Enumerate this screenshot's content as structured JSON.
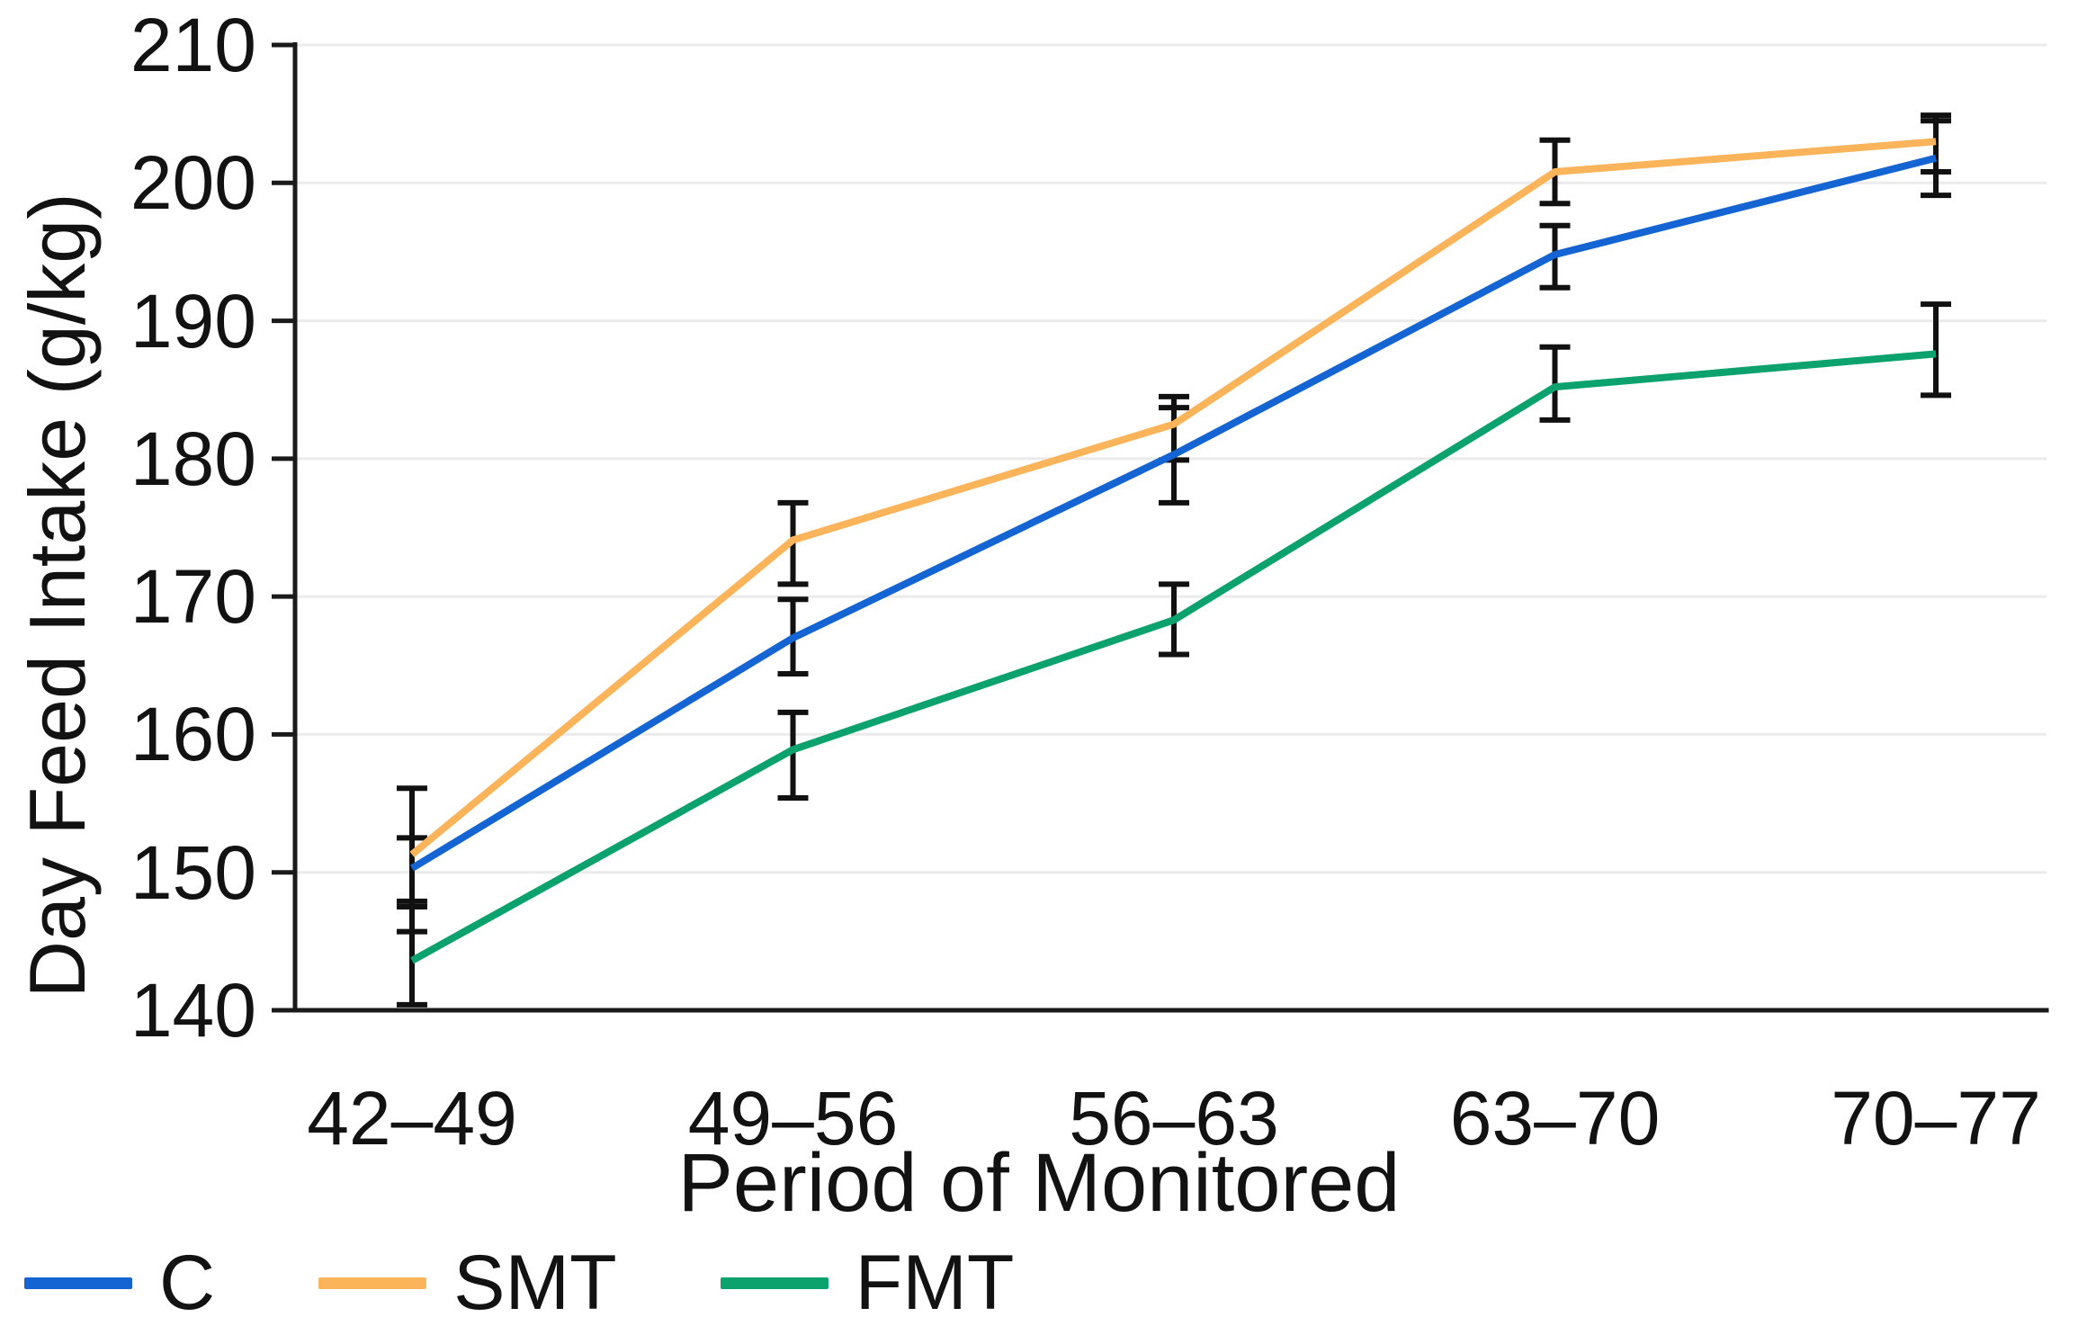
{
  "chart_data": {
    "type": "line",
    "title": "",
    "xlabel": "Period of Monitored",
    "ylabel": "Day Feed Intake (g/kg)",
    "categories": [
      "42–49",
      "49–56",
      "56–63",
      "63–70",
      "70–77"
    ],
    "ylim": [
      140,
      210
    ],
    "y_ticks": [
      140,
      150,
      160,
      170,
      180,
      190,
      200,
      210
    ],
    "grid": "horizontal-only",
    "error_bars": true,
    "legend_position": "bottom-left",
    "series": [
      {
        "name": "C",
        "color": "#1464d3",
        "values": [
          150.3,
          167.0,
          180.3,
          194.8,
          201.8
        ],
        "err_hi": [
          152.5,
          169.8,
          183.7,
          196.9,
          204.5
        ],
        "err_lo": [
          147.9,
          164.4,
          176.8,
          192.4,
          199.1
        ]
      },
      {
        "name": "SMT",
        "color": "#fcb45a",
        "values": [
          151.3,
          174.1,
          182.5,
          200.8,
          203.0
        ],
        "err_hi": [
          156.1,
          176.8,
          184.5,
          203.1,
          204.9
        ],
        "err_lo": [
          145.7,
          170.9,
          179.9,
          198.5,
          200.8
        ]
      },
      {
        "name": "FMT",
        "color": "#0ca26e",
        "values": [
          143.6,
          158.9,
          168.3,
          185.2,
          187.6
        ],
        "err_hi": [
          147.5,
          161.6,
          170.9,
          188.1,
          191.2
        ],
        "err_lo": [
          140.4,
          155.4,
          165.8,
          182.8,
          184.6
        ]
      }
    ],
    "axis_color": "#1a1a1a",
    "grid_color": "#ebebeb",
    "errorbar_color": "#111111"
  }
}
